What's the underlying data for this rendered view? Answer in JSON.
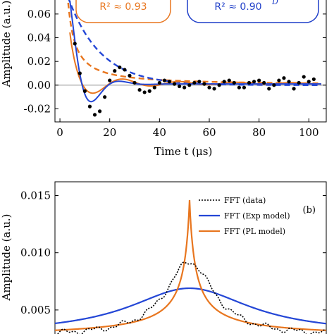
{
  "colors": {
    "orange": "#e8761f",
    "blue": "#1f3fc9",
    "blue_fit": "#2346d6",
    "data": "#000000",
    "zero_line": "#999999"
  },
  "chart_data": [
    {
      "panel": "top",
      "type": "scatter",
      "xlabel": "Time t (μs)",
      "ylabel": "Amplitude (a.u.)",
      "xlim": [
        -2,
        107
      ],
      "ylim": [
        -0.031,
        0.073
      ],
      "x_ticks": [
        0,
        20,
        40,
        60,
        80,
        100
      ],
      "y_ticks": [
        -0.02,
        0.0,
        0.02,
        0.04,
        0.06
      ],
      "y_tick_labels": [
        "-0.02",
        "0.00",
        "0.02",
        "0.04",
        "0.06"
      ],
      "annotations": {
        "pl_r2": "R² ≈ 0.93",
        "exp_r2": "R² ≈ 0.90",
        "exp_suffix": "D"
      },
      "data_points": {
        "x": [
          6,
          8,
          10,
          12,
          14,
          16,
          18,
          20,
          22,
          24,
          26,
          28,
          30,
          32,
          34,
          36,
          38,
          40,
          42,
          44,
          46,
          48,
          50,
          52,
          54,
          56,
          58,
          60,
          62,
          64,
          66,
          68,
          70,
          72,
          74,
          76,
          78,
          80,
          82,
          84,
          86,
          88,
          90,
          92,
          94,
          96,
          98,
          100,
          102
        ],
        "y": [
          0.035,
          0.01,
          -0.005,
          -0.018,
          -0.025,
          -0.022,
          -0.01,
          0.004,
          0.012,
          0.015,
          0.013,
          0.008,
          0.002,
          -0.004,
          -0.006,
          -0.005,
          -0.002,
          0.002,
          0.004,
          0.003,
          0.001,
          -0.001,
          -0.002,
          0.0,
          0.002,
          0.003,
          0.001,
          -0.002,
          -0.003,
          0.0,
          0.003,
          0.004,
          0.002,
          -0.002,
          -0.002,
          0.002,
          0.003,
          0.004,
          0.002,
          -0.003,
          0.0,
          0.004,
          0.006,
          0.003,
          -0.003,
          0.002,
          0.007,
          0.003,
          0.005
        ]
      }
    },
    {
      "panel": "bottom",
      "type": "line",
      "ylabel": "Amplitude (a.u.)",
      "panel_label": "(b)",
      "ylim": [
        0.0029,
        0.0162
      ],
      "y_ticks": [
        0.005,
        0.01,
        0.015
      ],
      "y_tick_labels": [
        "0.005",
        "0.010",
        "0.015"
      ],
      "legend": [
        "FFT (data)",
        "FFT (Exp model)",
        "FFT (PL model)"
      ],
      "legend_position": "top-right"
    }
  ]
}
